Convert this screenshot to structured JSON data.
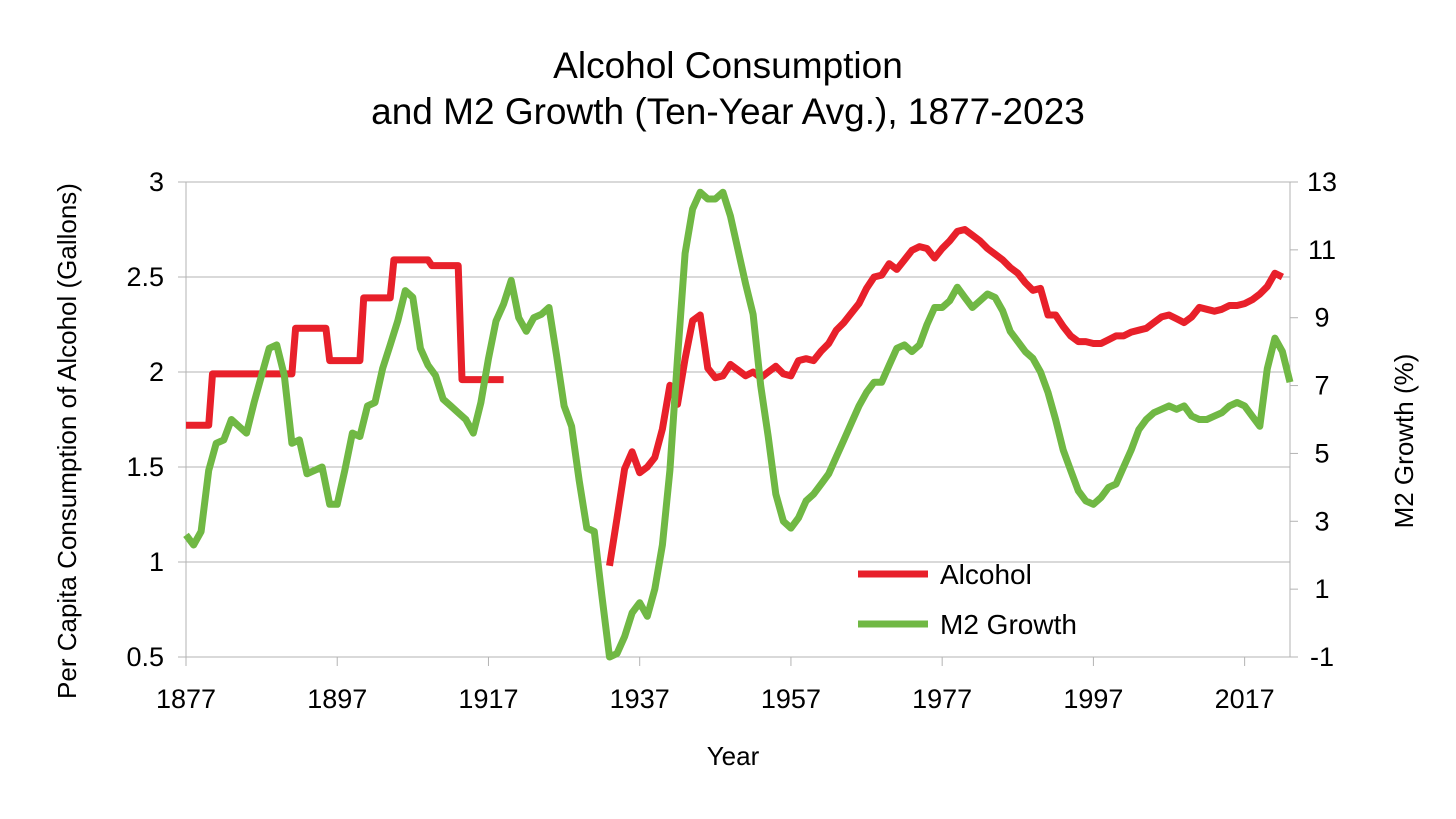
{
  "chart_data": {
    "type": "line",
    "title": [
      "Alcohol Consumption",
      "and M2 Growth (Ten-Year Avg.), 1877-2023"
    ],
    "xlabel": "Year",
    "ylabel_left": "Per Capita Consumption of Alcohol (Gallons)",
    "ylabel_right": "M2 Growth (%)",
    "xlim": [
      1877,
      2023
    ],
    "x_ticks": [
      1877,
      1897,
      1917,
      1937,
      1957,
      1977,
      1997,
      2017
    ],
    "ylim_left": [
      0.5,
      3
    ],
    "y_ticks_left": [
      "0.5",
      "1",
      "1.5",
      "2",
      "2.5",
      "3"
    ],
    "ylim_right": [
      -1,
      13
    ],
    "y_ticks_right": [
      "-1",
      "1",
      "3",
      "5",
      "7",
      "9",
      "11",
      "13"
    ],
    "grid": "horizontal",
    "legend_position": "bottom-center",
    "series": [
      {
        "name": "Alcohol",
        "axis": "left",
        "color": "#e8202a",
        "segments": [
          [
            [
              1877,
              1.72
            ],
            [
              1880,
              1.72
            ],
            [
              1880.5,
              1.99
            ],
            [
              1890,
              1.99
            ],
            [
              1891,
              1.99
            ],
            [
              1891.5,
              2.23
            ],
            [
              1895,
              2.23
            ],
            [
              1895.5,
              2.23
            ],
            [
              1896,
              2.06
            ],
            [
              1900,
              2.06
            ],
            [
              1900.5,
              2.39
            ],
            [
              1904,
              2.39
            ],
            [
              1904.5,
              2.59
            ],
            [
              1909,
              2.59
            ],
            [
              1909.5,
              2.56
            ],
            [
              1913,
              2.56
            ],
            [
              1913.5,
              1.96
            ],
            [
              1919,
              1.96
            ]
          ],
          [
            [
              1933,
              0.98
            ],
            [
              1934,
              1.23
            ],
            [
              1935,
              1.49
            ],
            [
              1936,
              1.58
            ],
            [
              1937,
              1.47
            ],
            [
              1938,
              1.5
            ],
            [
              1939,
              1.55
            ],
            [
              1940,
              1.7
            ],
            [
              1941,
              1.93
            ],
            [
              1942,
              1.83
            ],
            [
              1943,
              2.07
            ],
            [
              1944,
              2.27
            ],
            [
              1945,
              2.3
            ],
            [
              1946,
              2.02
            ],
            [
              1947,
              1.97
            ],
            [
              1948,
              1.98
            ],
            [
              1949,
              2.04
            ],
            [
              1950,
              2.01
            ],
            [
              1951,
              1.98
            ],
            [
              1952,
              2.0
            ],
            [
              1953,
              1.97
            ],
            [
              1954,
              2.0
            ],
            [
              1955,
              2.03
            ],
            [
              1956,
              1.99
            ],
            [
              1957,
              1.98
            ],
            [
              1958,
              2.06
            ],
            [
              1959,
              2.07
            ],
            [
              1960,
              2.06
            ],
            [
              1961,
              2.11
            ],
            [
              1962,
              2.15
            ],
            [
              1963,
              2.22
            ],
            [
              1964,
              2.26
            ],
            [
              1965,
              2.31
            ],
            [
              1966,
              2.36
            ],
            [
              1967,
              2.44
            ],
            [
              1968,
              2.5
            ],
            [
              1969,
              2.51
            ],
            [
              1970,
              2.57
            ],
            [
              1971,
              2.54
            ],
            [
              1972,
              2.59
            ],
            [
              1973,
              2.64
            ],
            [
              1974,
              2.66
            ],
            [
              1975,
              2.65
            ],
            [
              1976,
              2.6
            ],
            [
              1977,
              2.65
            ],
            [
              1978,
              2.69
            ],
            [
              1979,
              2.74
            ],
            [
              1980,
              2.75
            ],
            [
              1981,
              2.72
            ],
            [
              1982,
              2.69
            ],
            [
              1983,
              2.65
            ],
            [
              1984,
              2.62
            ],
            [
              1985,
              2.59
            ],
            [
              1986,
              2.55
            ],
            [
              1987,
              2.52
            ],
            [
              1988,
              2.47
            ],
            [
              1989,
              2.43
            ],
            [
              1990,
              2.44
            ],
            [
              1991,
              2.3
            ],
            [
              1992,
              2.3
            ],
            [
              1993,
              2.24
            ],
            [
              1994,
              2.19
            ],
            [
              1995,
              2.16
            ],
            [
              1996,
              2.16
            ],
            [
              1997,
              2.15
            ],
            [
              1998,
              2.15
            ],
            [
              1999,
              2.17
            ],
            [
              2000,
              2.19
            ],
            [
              2001,
              2.19
            ],
            [
              2002,
              2.21
            ],
            [
              2003,
              2.22
            ],
            [
              2004,
              2.23
            ],
            [
              2005,
              2.26
            ],
            [
              2006,
              2.29
            ],
            [
              2007,
              2.3
            ],
            [
              2008,
              2.28
            ],
            [
              2009,
              2.26
            ],
            [
              2010,
              2.29
            ],
            [
              2011,
              2.34
            ],
            [
              2012,
              2.33
            ],
            [
              2013,
              2.32
            ],
            [
              2014,
              2.33
            ],
            [
              2015,
              2.35
            ],
            [
              2016,
              2.35
            ],
            [
              2017,
              2.36
            ],
            [
              2018,
              2.38
            ],
            [
              2019,
              2.41
            ],
            [
              2020,
              2.45
            ],
            [
              2021,
              2.52
            ],
            [
              2022,
              2.5
            ]
          ]
        ]
      },
      {
        "name": "M2 Growth",
        "axis": "right",
        "color": "#70b844",
        "segments": [
          [
            [
              1877,
              2.6
            ],
            [
              1878,
              2.3
            ],
            [
              1879,
              2.7
            ],
            [
              1880,
              4.5
            ],
            [
              1881,
              5.3
            ],
            [
              1882,
              5.4
            ],
            [
              1883,
              6.0
            ],
            [
              1884,
              5.8
            ],
            [
              1885,
              5.6
            ],
            [
              1886,
              6.5
            ],
            [
              1887,
              7.3
            ],
            [
              1888,
              8.1
            ],
            [
              1889,
              8.2
            ],
            [
              1890,
              7.3
            ],
            [
              1891,
              5.3
            ],
            [
              1892,
              5.4
            ],
            [
              1893,
              4.4
            ],
            [
              1894,
              4.5
            ],
            [
              1895,
              4.6
            ],
            [
              1896,
              3.5
            ],
            [
              1897,
              3.5
            ],
            [
              1898,
              4.5
            ],
            [
              1899,
              5.6
            ],
            [
              1900,
              5.5
            ],
            [
              1901,
              6.4
            ],
            [
              1902,
              6.5
            ],
            [
              1903,
              7.5
            ],
            [
              1904,
              8.2
            ],
            [
              1905,
              8.9
            ],
            [
              1906,
              9.8
            ],
            [
              1907,
              9.6
            ],
            [
              1908,
              8.1
            ],
            [
              1909,
              7.6
            ],
            [
              1910,
              7.3
            ],
            [
              1911,
              6.6
            ],
            [
              1912,
              6.4
            ],
            [
              1913,
              6.2
            ],
            [
              1914,
              6.0
            ],
            [
              1915,
              5.6
            ],
            [
              1916,
              6.5
            ],
            [
              1917,
              7.8
            ],
            [
              1918,
              8.9
            ],
            [
              1919,
              9.4
            ],
            [
              1920,
              10.1
            ],
            [
              1921,
              9.0
            ],
            [
              1922,
              8.6
            ],
            [
              1923,
              9.0
            ],
            [
              1924,
              9.1
            ],
            [
              1925,
              9.3
            ],
            [
              1926,
              7.9
            ],
            [
              1927,
              6.4
            ],
            [
              1928,
              5.8
            ],
            [
              1929,
              4.2
            ],
            [
              1930,
              2.8
            ],
            [
              1931,
              2.7
            ],
            [
              1932,
              0.8
            ],
            [
              1933,
              -1.0
            ],
            [
              1934,
              -0.9
            ],
            [
              1935,
              -0.4
            ],
            [
              1936,
              0.3
            ],
            [
              1937,
              0.6
            ],
            [
              1938,
              0.2
            ],
            [
              1939,
              1.0
            ],
            [
              1940,
              2.3
            ],
            [
              1941,
              4.5
            ],
            [
              1942,
              7.8
            ],
            [
              1943,
              10.9
            ],
            [
              1944,
              12.2
            ],
            [
              1945,
              12.7
            ],
            [
              1946,
              12.5
            ],
            [
              1947,
              12.5
            ],
            [
              1948,
              12.7
            ],
            [
              1949,
              12.0
            ],
            [
              1950,
              11.0
            ],
            [
              1951,
              10.0
            ],
            [
              1952,
              9.1
            ],
            [
              1953,
              7.0
            ],
            [
              1954,
              5.5
            ],
            [
              1955,
              3.8
            ],
            [
              1956,
              3.0
            ],
            [
              1957,
              2.8
            ],
            [
              1958,
              3.1
            ],
            [
              1959,
              3.6
            ],
            [
              1960,
              3.8
            ],
            [
              1961,
              4.1
            ],
            [
              1962,
              4.4
            ],
            [
              1963,
              4.9
            ],
            [
              1964,
              5.4
            ],
            [
              1965,
              5.9
            ],
            [
              1966,
              6.4
            ],
            [
              1967,
              6.8
            ],
            [
              1968,
              7.1
            ],
            [
              1969,
              7.1
            ],
            [
              1970,
              7.6
            ],
            [
              1971,
              8.1
            ],
            [
              1972,
              8.2
            ],
            [
              1973,
              8.0
            ],
            [
              1974,
              8.2
            ],
            [
              1975,
              8.8
            ],
            [
              1976,
              9.3
            ],
            [
              1977,
              9.3
            ],
            [
              1978,
              9.5
            ],
            [
              1979,
              9.9
            ],
            [
              1980,
              9.6
            ],
            [
              1981,
              9.3
            ],
            [
              1982,
              9.5
            ],
            [
              1983,
              9.7
            ],
            [
              1984,
              9.6
            ],
            [
              1985,
              9.2
            ],
            [
              1986,
              8.6
            ],
            [
              1987,
              8.3
            ],
            [
              1988,
              8.0
            ],
            [
              1989,
              7.8
            ],
            [
              1990,
              7.4
            ],
            [
              1991,
              6.8
            ],
            [
              1992,
              6.0
            ],
            [
              1993,
              5.1
            ],
            [
              1994,
              4.5
            ],
            [
              1995,
              3.9
            ],
            [
              1996,
              3.6
            ],
            [
              1997,
              3.5
            ],
            [
              1998,
              3.7
            ],
            [
              1999,
              4.0
            ],
            [
              2000,
              4.1
            ],
            [
              2001,
              4.6
            ],
            [
              2002,
              5.1
            ],
            [
              2003,
              5.7
            ],
            [
              2004,
              6.0
            ],
            [
              2005,
              6.2
            ],
            [
              2006,
              6.3
            ],
            [
              2007,
              6.4
            ],
            [
              2008,
              6.3
            ],
            [
              2009,
              6.4
            ],
            [
              2010,
              6.1
            ],
            [
              2011,
              6.0
            ],
            [
              2012,
              6.0
            ],
            [
              2013,
              6.1
            ],
            [
              2014,
              6.2
            ],
            [
              2015,
              6.4
            ],
            [
              2016,
              6.5
            ],
            [
              2017,
              6.4
            ],
            [
              2018,
              6.1
            ],
            [
              2019,
              5.8
            ],
            [
              2020,
              7.5
            ],
            [
              2021,
              8.4
            ],
            [
              2022,
              8.0
            ],
            [
              2023,
              7.1
            ]
          ]
        ]
      }
    ]
  }
}
